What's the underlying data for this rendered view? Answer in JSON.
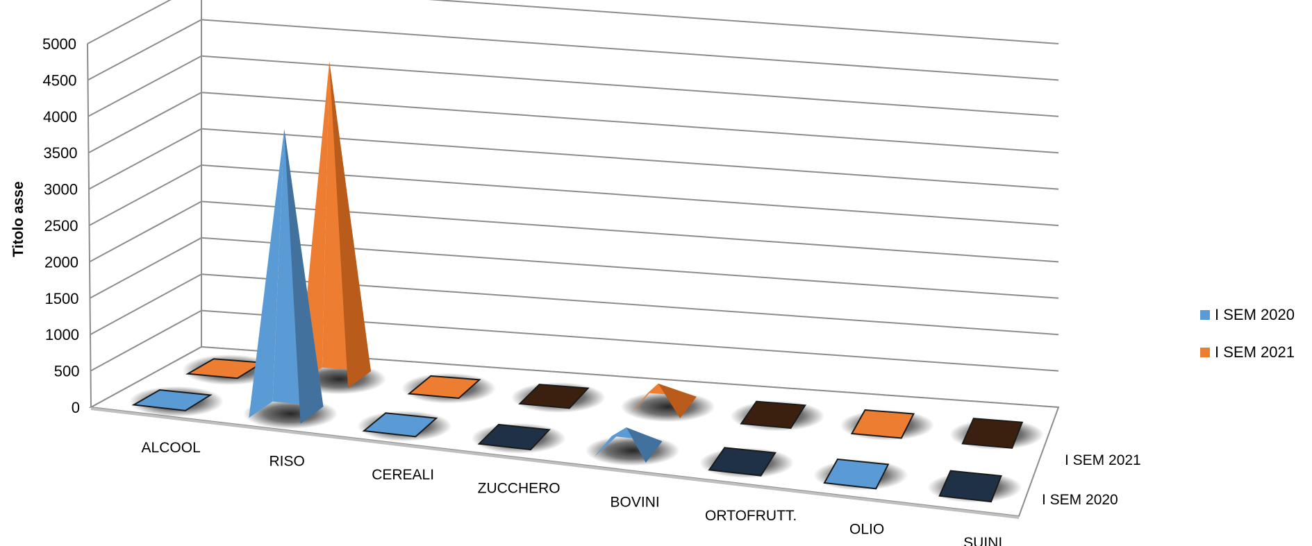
{
  "chart_data": {
    "type": "bar",
    "bar_shape": "pyramid",
    "three_d": true,
    "title": "",
    "xlabel": "",
    "ylabel": "Titolo asse",
    "ylim": [
      0,
      5000
    ],
    "yticks": [
      "0",
      "500",
      "1000",
      "1500",
      "2000",
      "2500",
      "3000",
      "3500",
      "4000",
      "4500",
      "5000"
    ],
    "categories": [
      "ALCOOL",
      "RISO",
      "CEREALI",
      "ZUCCHERO",
      "BOVINI",
      "ORTOFRUTT.",
      "OLIO",
      "SUINI"
    ],
    "series": [
      {
        "name": "I SEM 2020",
        "color": "#5b9bd5",
        "values": [
          0,
          3900,
          0,
          0,
          300,
          0,
          0,
          0
        ]
      },
      {
        "name": "I SEM 2021",
        "color": "#ed7d31",
        "values": [
          0,
          4350,
          0,
          0,
          300,
          0,
          0,
          0
        ]
      }
    ],
    "depth_labels": [
      "I SEM 2021",
      "I SEM 2020"
    ],
    "grid": true,
    "legend_position": "right"
  }
}
